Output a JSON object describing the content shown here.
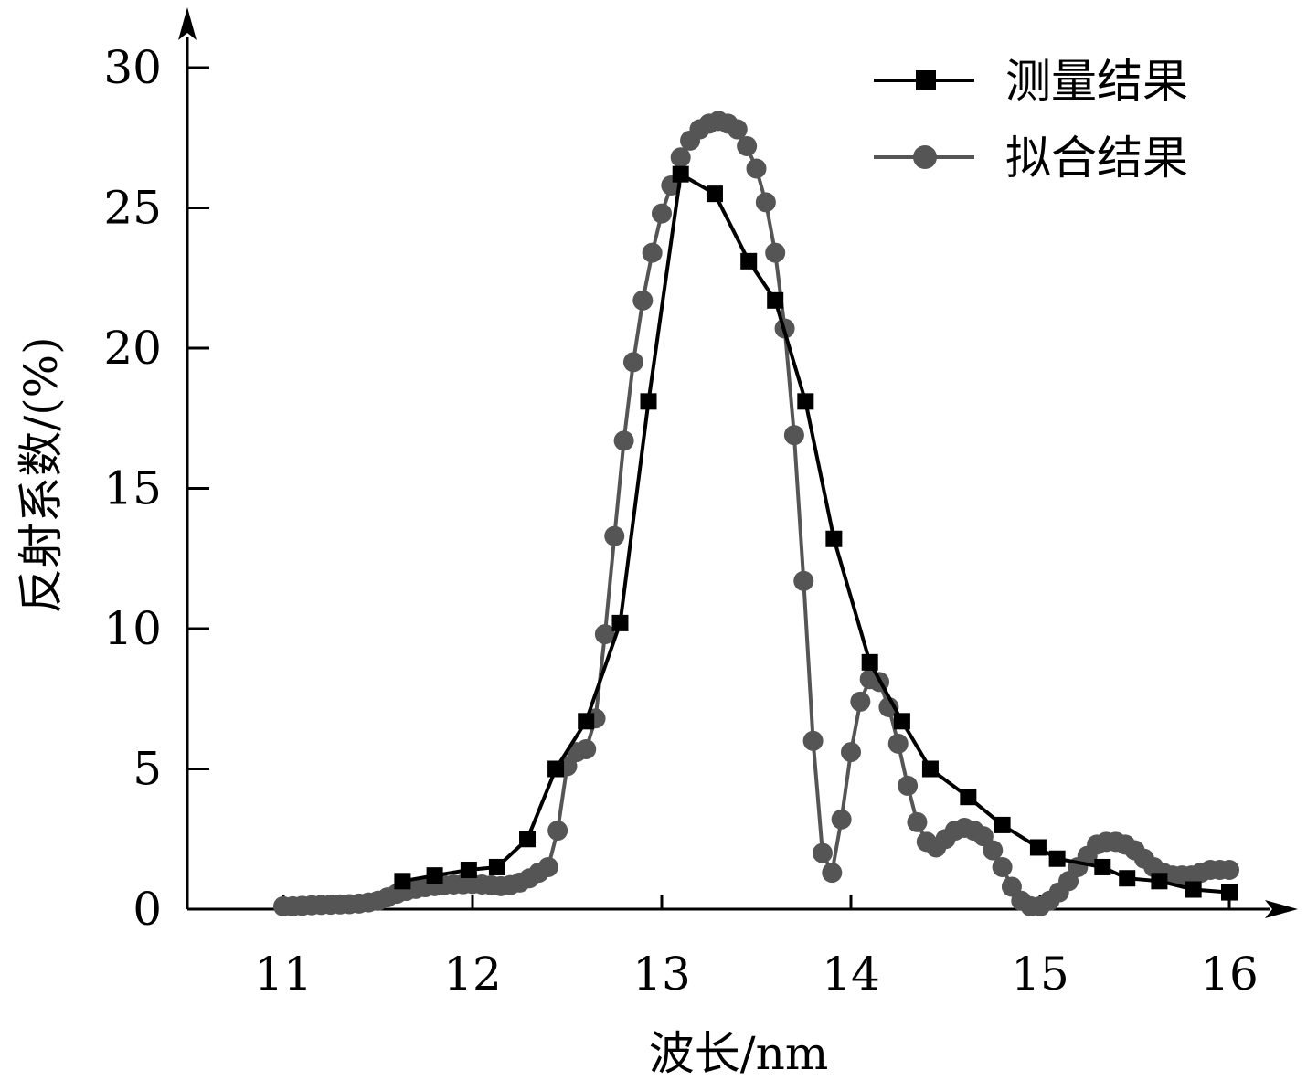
{
  "chart_data": {
    "type": "line",
    "title": "",
    "xlabel": "波长/nm",
    "ylabel": "反射系数/(%)",
    "xlim": [
      10.5,
      16.4
    ],
    "ylim": [
      0,
      31
    ],
    "x_ticks": [
      11,
      12,
      13,
      14,
      15,
      16
    ],
    "y_ticks": [
      0,
      5,
      10,
      15,
      20,
      25,
      30
    ],
    "x_tick_labels": [
      "11",
      "12",
      "13",
      "14",
      "15",
      "16"
    ],
    "y_tick_labels": [
      "0",
      "5",
      "10",
      "15",
      "20",
      "25",
      "30"
    ],
    "grid": false,
    "legend_position": "top-right",
    "series": [
      {
        "name": "测量结果",
        "color": "#000000",
        "marker": "square",
        "x": [
          11.63,
          11.8,
          11.98,
          12.13,
          12.29,
          12.44,
          12.6,
          12.78,
          12.93,
          13.1,
          13.28,
          13.46,
          13.6,
          13.76,
          13.91,
          14.1,
          14.27,
          14.42,
          14.62,
          14.8,
          14.99,
          15.09,
          15.33,
          15.46,
          15.63,
          15.81,
          16.0
        ],
        "y": [
          1.0,
          1.2,
          1.4,
          1.5,
          2.5,
          5.0,
          6.7,
          10.2,
          18.1,
          26.2,
          25.5,
          23.1,
          21.7,
          18.1,
          13.2,
          8.8,
          6.7,
          5.0,
          4.0,
          3.0,
          2.2,
          1.8,
          1.5,
          1.1,
          1.0,
          0.7,
          0.6
        ]
      },
      {
        "name": "拟合结果",
        "color": "#555555",
        "marker": "circle",
        "x": [
          11.0,
          11.05,
          11.1,
          11.15,
          11.2,
          11.25,
          11.3,
          11.35,
          11.4,
          11.45,
          11.5,
          11.55,
          11.6,
          11.65,
          11.7,
          11.75,
          11.8,
          11.85,
          11.9,
          11.95,
          12.0,
          12.05,
          12.1,
          12.15,
          12.2,
          12.25,
          12.3,
          12.35,
          12.4,
          12.45,
          12.5,
          12.55,
          12.6,
          12.65,
          12.7,
          12.75,
          12.8,
          12.85,
          12.9,
          12.95,
          13.0,
          13.05,
          13.1,
          13.15,
          13.2,
          13.25,
          13.3,
          13.35,
          13.4,
          13.45,
          13.5,
          13.55,
          13.6,
          13.65,
          13.7,
          13.75,
          13.8,
          13.85,
          13.9,
          13.95,
          14.0,
          14.05,
          14.1,
          14.15,
          14.2,
          14.25,
          14.3,
          14.35,
          14.4,
          14.45,
          14.5,
          14.55,
          14.6,
          14.65,
          14.7,
          14.75,
          14.8,
          14.85,
          14.9,
          14.95,
          15.0,
          15.05,
          15.1,
          15.15,
          15.2,
          15.25,
          15.3,
          15.35,
          15.4,
          15.45,
          15.5,
          15.55,
          15.6,
          15.65,
          15.7,
          15.75,
          15.8,
          15.85,
          15.9,
          15.95,
          16.0
        ],
        "y": [
          0.1,
          0.1,
          0.12,
          0.14,
          0.15,
          0.16,
          0.17,
          0.18,
          0.2,
          0.24,
          0.3,
          0.42,
          0.55,
          0.65,
          0.72,
          0.78,
          0.82,
          0.86,
          0.88,
          0.89,
          0.9,
          0.88,
          0.85,
          0.82,
          0.86,
          0.95,
          1.1,
          1.3,
          1.5,
          2.8,
          5.1,
          5.6,
          5.7,
          6.8,
          9.8,
          13.3,
          16.7,
          19.5,
          21.7,
          23.4,
          24.8,
          25.8,
          26.8,
          27.4,
          27.8,
          28.0,
          28.1,
          28.0,
          27.8,
          27.2,
          26.4,
          25.2,
          23.4,
          20.7,
          16.9,
          11.7,
          6.0,
          2.0,
          1.3,
          3.2,
          5.6,
          7.4,
          8.2,
          8.1,
          7.2,
          5.9,
          4.4,
          3.1,
          2.4,
          2.2,
          2.5,
          2.8,
          2.9,
          2.8,
          2.6,
          2.1,
          1.5,
          0.8,
          0.3,
          0.1,
          0.1,
          0.3,
          0.6,
          1.0,
          1.5,
          1.9,
          2.3,
          2.4,
          2.4,
          2.3,
          2.1,
          1.8,
          1.5,
          1.3,
          1.2,
          1.2,
          1.2,
          1.3,
          1.4,
          1.4,
          1.4
        ]
      }
    ]
  }
}
